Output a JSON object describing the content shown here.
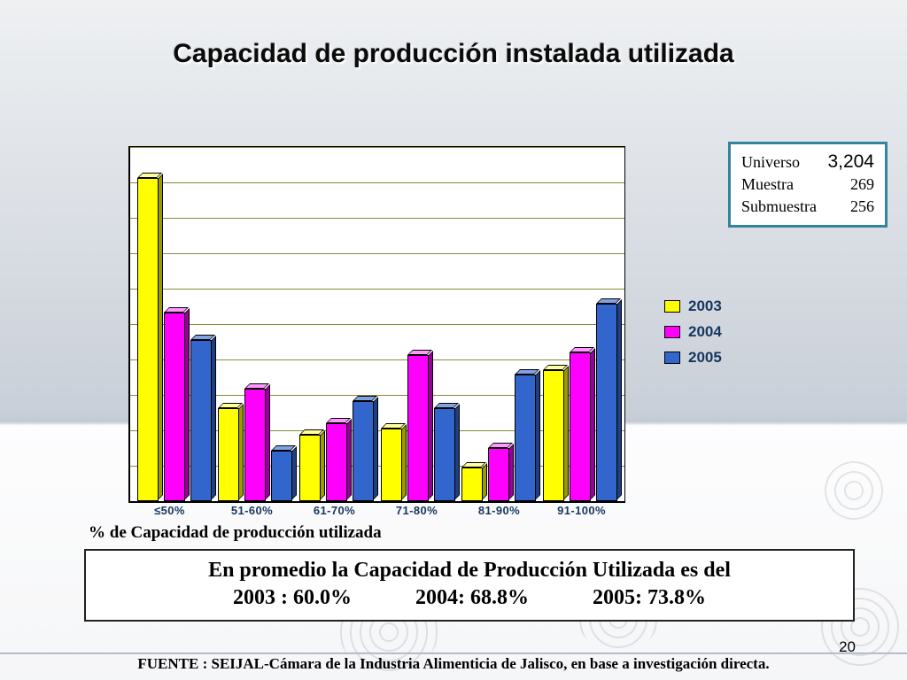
{
  "slide": {
    "title": "Capacidad de producción instalada utilizada",
    "page_number": "20",
    "footer": "FUENTE : SEIJAL-Cámara de la Industria Alimenticia de Jalisco,  en base a investigación directa."
  },
  "info_box": {
    "border_color": "#31859C",
    "rows": [
      {
        "label": "Universo",
        "value": "3,204"
      },
      {
        "label": "Muestra",
        "value": "269"
      },
      {
        "label": "Submuestra",
        "value": "256"
      }
    ]
  },
  "chart_data": {
    "type": "bar",
    "title": "",
    "categories": [
      "≤50%",
      "51-60%",
      "61-70%",
      "71-80%",
      "81-90%",
      "91-100%"
    ],
    "series": [
      {
        "name": "2003",
        "color": "#FFFF00",
        "top": "#FFFF99",
        "side": "#9B9B00",
        "values": [
          36.5,
          10.5,
          7.5,
          8.2,
          3.8,
          14.8
        ]
      },
      {
        "name": "2004",
        "color": "#FF00FF",
        "top": "#FF99FF",
        "side": "#990099",
        "values": [
          21.3,
          12.7,
          8.8,
          16.5,
          6.0,
          16.8
        ]
      },
      {
        "name": "2005",
        "color": "#3366CC",
        "top": "#7FA3E3",
        "side": "#1F3F80",
        "values": [
          18.2,
          5.7,
          11.3,
          10.5,
          14.3,
          22.3
        ]
      }
    ],
    "ylim": [
      0,
      40
    ],
    "gridline_step": 4,
    "gridline_color": "#8A8A3A",
    "legend_position": "right",
    "xlabel": "% de Capacidad de producción utilizada",
    "grid": true
  },
  "summary_box": {
    "intro": "En promedio la  Capacidad de Producción Utilizada es  del",
    "values": [
      "2003 : 60.0%",
      "2004: 68.8%",
      "2005: 73.8%"
    ]
  }
}
